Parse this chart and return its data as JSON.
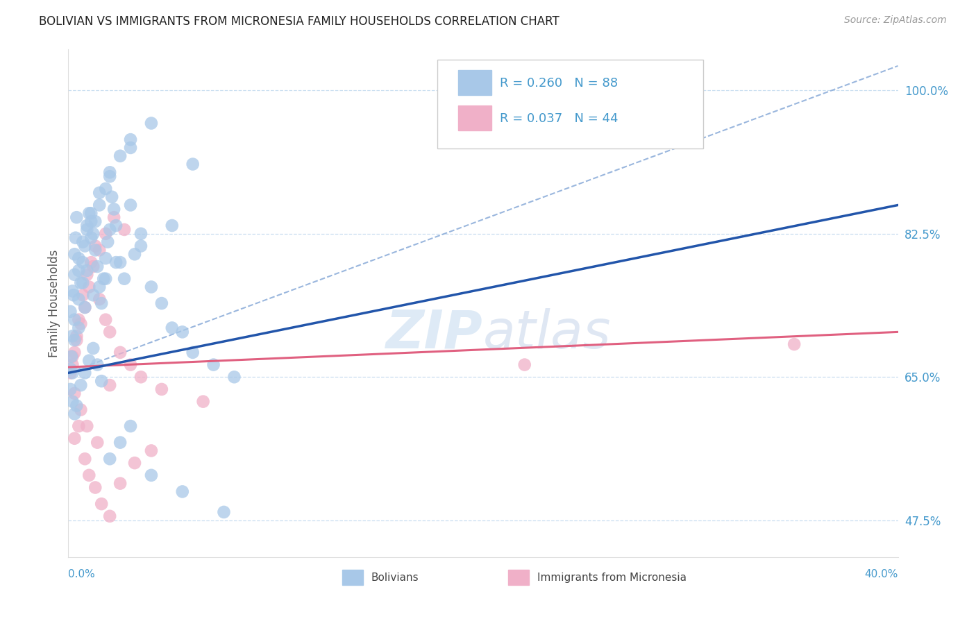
{
  "title": "BOLIVIAN VS IMMIGRANTS FROM MICRONESIA FAMILY HOUSEHOLDS CORRELATION CHART",
  "source": "Source: ZipAtlas.com",
  "ylabel": "Family Households",
  "yticks": [
    47.5,
    65.0,
    82.5,
    100.0
  ],
  "ytick_labels": [
    "47.5%",
    "65.0%",
    "82.5%",
    "100.0%"
  ],
  "xmin": 0.0,
  "xmax": 40.0,
  "ymin": 43.0,
  "ymax": 105.0,
  "legend1_label": "R = 0.260   N = 88",
  "legend2_label": "R = 0.037   N = 44",
  "legend_bottom_label1": "Bolivians",
  "legend_bottom_label2": "Immigrants from Micronesia",
  "blue_color": "#a8c8e8",
  "pink_color": "#f0b0c8",
  "blue_line_color": "#2255aa",
  "pink_line_color": "#e06080",
  "dashed_line_color": "#88aad8",
  "title_color": "#333333",
  "axis_label_color": "#4499cc",
  "watermark_color": "#c8ddf0",
  "grid_color": "#c8ddf0",
  "blue_solid_x0": 0.0,
  "blue_solid_y0": 65.5,
  "blue_solid_x1": 40.0,
  "blue_solid_y1": 86.0,
  "blue_dashed_x0": 0.0,
  "blue_dashed_y0": 65.5,
  "blue_dashed_x1": 40.0,
  "blue_dashed_y1": 103.0,
  "pink_solid_x0": 0.0,
  "pink_solid_y0": 66.2,
  "pink_solid_x1": 40.0,
  "pink_solid_y1": 70.5,
  "bolivians_x": [
    0.1,
    0.15,
    0.2,
    0.25,
    0.3,
    0.35,
    0.4,
    0.5,
    0.6,
    0.7,
    0.8,
    0.9,
    1.0,
    1.1,
    1.2,
    1.3,
    1.4,
    1.5,
    1.6,
    1.7,
    1.8,
    1.9,
    2.0,
    2.1,
    2.2,
    2.3,
    2.5,
    2.7,
    3.0,
    3.2,
    3.5,
    4.0,
    4.5,
    5.0,
    5.5,
    6.0,
    7.0,
    8.0,
    0.2,
    0.3,
    0.5,
    0.7,
    0.9,
    1.1,
    1.3,
    1.5,
    1.8,
    2.0,
    2.5,
    3.0,
    0.1,
    0.2,
    0.3,
    0.4,
    0.6,
    0.8,
    1.0,
    1.2,
    1.4,
    1.6,
    2.0,
    2.5,
    3.0,
    4.0,
    5.5,
    7.5,
    0.1,
    0.2,
    0.3,
    0.5,
    0.7,
    0.9,
    1.1,
    1.5,
    2.0,
    3.0,
    4.0,
    6.0,
    0.3,
    0.5,
    0.8,
    1.2,
    1.8,
    2.3,
    3.5,
    5.0
  ],
  "bolivians_y": [
    66.0,
    67.5,
    65.5,
    75.0,
    80.0,
    82.0,
    84.5,
    78.0,
    76.5,
    79.0,
    81.0,
    83.5,
    85.0,
    84.0,
    82.5,
    80.5,
    78.5,
    76.0,
    74.0,
    77.0,
    79.5,
    81.5,
    83.0,
    87.0,
    85.5,
    83.5,
    79.0,
    77.0,
    86.0,
    80.0,
    82.5,
    76.0,
    74.0,
    71.0,
    70.5,
    68.0,
    66.5,
    65.0,
    70.0,
    72.0,
    74.5,
    76.5,
    78.0,
    82.0,
    84.0,
    86.0,
    88.0,
    90.0,
    92.0,
    94.0,
    63.5,
    62.0,
    60.5,
    61.5,
    64.0,
    65.5,
    67.0,
    68.5,
    66.5,
    64.5,
    55.0,
    57.0,
    59.0,
    53.0,
    51.0,
    48.5,
    73.0,
    75.5,
    77.5,
    79.5,
    81.5,
    83.0,
    85.0,
    87.5,
    89.5,
    93.0,
    96.0,
    91.0,
    69.5,
    71.0,
    73.5,
    75.0,
    77.0,
    79.0,
    81.0,
    83.5
  ],
  "micronesia_x": [
    0.1,
    0.2,
    0.3,
    0.4,
    0.5,
    0.7,
    0.9,
    1.1,
    1.3,
    1.5,
    1.8,
    2.0,
    2.5,
    3.0,
    3.5,
    4.5,
    6.5,
    0.2,
    0.4,
    0.6,
    0.8,
    1.0,
    1.2,
    1.5,
    1.8,
    2.2,
    2.7,
    0.3,
    0.5,
    0.8,
    1.0,
    1.3,
    1.6,
    2.0,
    2.5,
    3.2,
    4.0,
    0.3,
    0.6,
    0.9,
    1.4,
    2.0,
    22.0,
    35.0
  ],
  "micronesia_y": [
    65.5,
    66.5,
    68.0,
    70.0,
    72.0,
    75.0,
    77.5,
    79.0,
    81.0,
    74.5,
    72.0,
    70.5,
    68.0,
    66.5,
    65.0,
    63.5,
    62.0,
    67.5,
    69.5,
    71.5,
    73.5,
    76.0,
    78.5,
    80.5,
    82.5,
    84.5,
    83.0,
    57.5,
    59.0,
    55.0,
    53.0,
    51.5,
    49.5,
    48.0,
    52.0,
    54.5,
    56.0,
    63.0,
    61.0,
    59.0,
    57.0,
    64.0,
    66.5,
    69.0
  ]
}
